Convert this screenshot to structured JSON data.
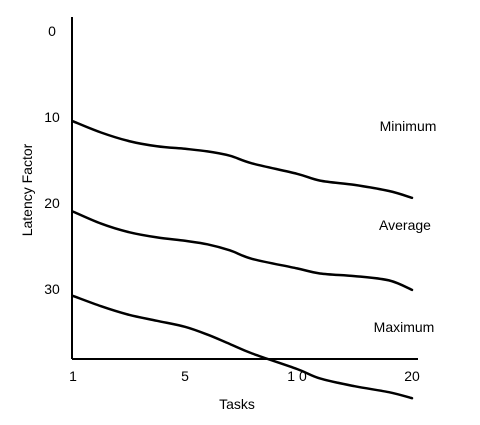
{
  "chart_data": {
    "type": "line",
    "title": "",
    "xlabel": "Tasks",
    "ylabel": "Latency Factor",
    "x_ticks": [
      {
        "value": 1,
        "label": "1"
      },
      {
        "value": 5,
        "label": "5"
      },
      {
        "value": 10,
        "label": "1 0"
      },
      {
        "value": 20,
        "label": "20"
      }
    ],
    "y_ticks": [
      {
        "value": 0,
        "label": "0"
      },
      {
        "value": 10,
        "label": "10"
      },
      {
        "value": 20,
        "label": "20"
      },
      {
        "value": 30,
        "label": "30"
      }
    ],
    "ylim": [
      0,
      38.5
    ],
    "y_inverted": true,
    "grid": false,
    "legend": "inline-labels",
    "series": [
      {
        "name": "Minimum",
        "points": [
          [
            1,
            10.5
          ],
          [
            2,
            11.8
          ],
          [
            3,
            12.8
          ],
          [
            4,
            13.4
          ],
          [
            5,
            13.7
          ],
          [
            6,
            14.0
          ],
          [
            7,
            14.5
          ],
          [
            8,
            15.4
          ],
          [
            10,
            16.6
          ],
          [
            12,
            17.4
          ],
          [
            15,
            17.9
          ],
          [
            18,
            18.6
          ],
          [
            20,
            19.4
          ]
        ]
      },
      {
        "name": "Average",
        "points": [
          [
            1,
            21.0
          ],
          [
            2,
            22.4
          ],
          [
            3,
            23.4
          ],
          [
            4,
            24.0
          ],
          [
            5,
            24.4
          ],
          [
            6,
            24.8
          ],
          [
            7,
            25.5
          ],
          [
            8,
            26.5
          ],
          [
            10,
            27.6
          ],
          [
            12,
            28.2
          ],
          [
            15,
            28.5
          ],
          [
            18,
            29.0
          ],
          [
            20,
            30.1
          ]
        ]
      },
      {
        "name": "Maximum",
        "points": [
          [
            1,
            30.8
          ],
          [
            2,
            32.0
          ],
          [
            3,
            33.0
          ],
          [
            4,
            33.7
          ],
          [
            5,
            34.4
          ],
          [
            6,
            35.3
          ],
          [
            7,
            36.4
          ],
          [
            8,
            37.5
          ],
          [
            10,
            39.3
          ],
          [
            12,
            40.4
          ],
          [
            15,
            41.3
          ],
          [
            18,
            42.0
          ],
          [
            20,
            42.7
          ]
        ]
      }
    ]
  }
}
